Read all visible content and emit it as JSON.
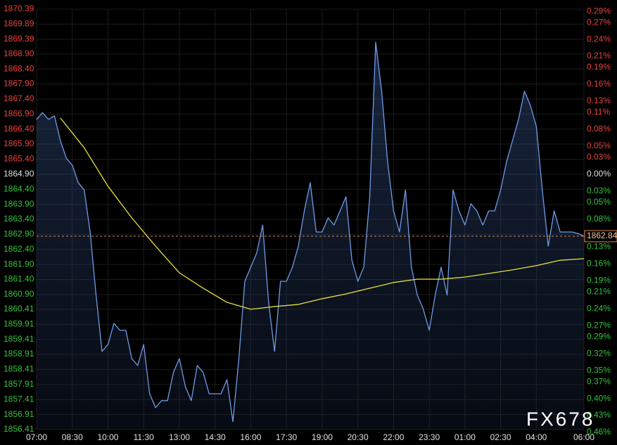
{
  "chart_data": {
    "type": "line",
    "watermark": "FX678",
    "last_price": 1862.84,
    "up_color": "#e8423c",
    "down_color": "#34c43a",
    "flat_color": "#e0e0e0",
    "grid": true,
    "xlim": [
      "07:00",
      "06:00"
    ],
    "xticks": [
      "07:00",
      "08:30",
      "10:00",
      "11:30",
      "13:00",
      "14:30",
      "16:00",
      "17:30",
      "19:00",
      "20:30",
      "22:00",
      "23:30",
      "01:00",
      "02:30",
      "04:00",
      "06:00"
    ],
    "ylim": [
      1856.41,
      1870.39
    ],
    "yticks": [
      1870.39,
      1869.89,
      1869.39,
      {
        "value": 1868.9,
        "label": "1868.90"
      },
      {
        "value": 1868.4,
        "label": "1868.40"
      },
      {
        "value": 1867.9,
        "label": "1867.90"
      },
      {
        "value": 1867.4,
        "label": "1867.40"
      },
      {
        "value": 1866.9,
        "label": "1866.90"
      },
      {
        "value": 1866.4,
        "label": "1866.40"
      },
      {
        "value": 1865.9,
        "label": "1865.90"
      },
      {
        "value": 1865.4,
        "label": "1865.40"
      },
      {
        "value": 1864.9,
        "label": "1864.90"
      },
      {
        "value": 1864.4,
        "label": "1864.40"
      },
      {
        "value": 1863.9,
        "label": "1863.90"
      },
      {
        "value": 1863.4,
        "label": "1863.40"
      },
      {
        "value": 1862.9,
        "label": "1862.90"
      },
      {
        "value": 1862.4,
        "label": "1862.40"
      },
      {
        "value": 1861.9,
        "label": "1861.90"
      },
      {
        "value": 1861.4,
        "label": "1861.40"
      },
      {
        "value": 1860.9,
        "label": "1860.90"
      },
      1860.41,
      1859.91,
      1859.41,
      1858.91,
      1858.41,
      1857.91,
      1857.41,
      1856.91,
      1856.41
    ],
    "y2lim": [
      -0.455,
      0.294
    ],
    "y2ticks": [
      {
        "value": 0.29,
        "label": "0.29%"
      },
      {
        "value": 0.27,
        "label": "0.27%"
      },
      {
        "value": 0.24,
        "label": "0.24%"
      },
      {
        "value": 0.21,
        "label": "0.21%"
      },
      {
        "value": 0.19,
        "label": "0.19%"
      },
      {
        "value": 0.16,
        "label": "0.16%"
      },
      {
        "value": 0.13,
        "label": "0.13%"
      },
      {
        "value": 0.11,
        "label": "0.11%"
      },
      {
        "value": 0.08,
        "label": "0.08%"
      },
      {
        "value": 0.05,
        "label": "0.05%"
      },
      {
        "value": 0.03,
        "label": "0.03%"
      },
      {
        "value": 0,
        "label": "0.00%"
      },
      {
        "value": -0.03,
        "label": "0.03%"
      },
      {
        "value": -0.05,
        "label": "0.05%"
      },
      {
        "value": -0.08,
        "label": "0.08%"
      },
      {
        "value": -0.11,
        "label": "0.11%"
      },
      {
        "value": -0.13,
        "label": "0.13%"
      },
      {
        "value": -0.16,
        "label": "0.16%"
      },
      {
        "value": -0.19,
        "label": "0.19%"
      },
      {
        "value": -0.21,
        "label": "0.21%"
      },
      {
        "value": -0.24,
        "label": "0.24%"
      },
      {
        "value": -0.27,
        "label": "0.27%"
      },
      {
        "value": -0.29,
        "label": "0.29%"
      },
      {
        "value": -0.32,
        "label": "0.32%"
      },
      {
        "value": -0.35,
        "label": "0.35%"
      },
      {
        "value": -0.37,
        "label": "0.37%"
      },
      {
        "value": -0.4,
        "label": "0.40%"
      },
      {
        "value": -0.43,
        "label": "0.43%"
      },
      {
        "value": -0.46,
        "label": "0.46%"
      }
    ],
    "series": [
      {
        "color": "#6f9be8",
        "fill": true,
        "x": [
          "07:00",
          "07:15",
          "07:30",
          "07:45",
          "08:00",
          "08:15",
          "08:30",
          "08:45",
          "09:00",
          "09:15",
          "09:30",
          "09:45",
          "10:00",
          "10:15",
          "10:30",
          "10:45",
          "11:00",
          "11:15",
          "11:30",
          "11:45",
          "12:00",
          "12:15",
          "12:30",
          "12:45",
          "13:00",
          "13:15",
          "13:30",
          "13:45",
          "14:00",
          "14:15",
          "14:30",
          "14:45",
          "15:00",
          "15:15",
          "15:30",
          "15:45",
          "16:00",
          "16:15",
          "16:30",
          "16:45",
          "17:00",
          "17:15",
          "17:30",
          "17:45",
          "18:00",
          "18:15",
          "18:30",
          "18:45",
          "19:00",
          "19:15",
          "19:30",
          "19:45",
          "20:00",
          "20:15",
          "20:30",
          "20:45",
          "21:00",
          "21:15",
          "21:30",
          "21:45",
          "22:00",
          "22:15",
          "22:30",
          "22:45",
          "23:00",
          "23:15",
          "23:30",
          "23:45",
          "00:00",
          "00:15",
          "00:30",
          "00:45",
          "01:00",
          "01:15",
          "01:30",
          "01:45",
          "02:00",
          "02:15",
          "02:30",
          "02:45",
          "03:00",
          "03:15",
          "03:30",
          "03:45",
          "04:00",
          "04:15",
          "04:30",
          "04:45",
          "05:00",
          "05:15",
          "05:30",
          "05:45",
          "06:00"
        ],
        "values": [
          1866.72,
          1866.95,
          1866.72,
          1866.84,
          1866.02,
          1865.43,
          1865.2,
          1864.62,
          1864.38,
          1862.98,
          1860.88,
          1859.01,
          1859.24,
          1859.94,
          1859.71,
          1859.71,
          1858.77,
          1858.54,
          1859.24,
          1857.6,
          1857.14,
          1857.37,
          1857.37,
          1858.31,
          1858.77,
          1857.84,
          1857.37,
          1858.54,
          1858.31,
          1857.6,
          1857.6,
          1857.6,
          1858.07,
          1856.67,
          1858.77,
          1861.34,
          1861.81,
          1862.28,
          1863.21,
          1860.64,
          1859.01,
          1861.34,
          1861.34,
          1861.81,
          1862.51,
          1863.68,
          1864.62,
          1862.98,
          1862.98,
          1863.45,
          1863.21,
          1863.68,
          1864.15,
          1862.04,
          1861.34,
          1861.81,
          1864.15,
          1869.29,
          1867.66,
          1865.32,
          1863.68,
          1862.98,
          1864.38,
          1861.81,
          1860.88,
          1860.41,
          1859.71,
          1860.88,
          1861.81,
          1860.88,
          1864.38,
          1863.68,
          1863.21,
          1863.92,
          1863.68,
          1863.21,
          1863.68,
          1863.68,
          1864.38,
          1865.32,
          1866.02,
          1866.72,
          1867.66,
          1867.19,
          1866.49,
          1864.38,
          1862.51,
          1863.68,
          1862.98,
          1862.98,
          1862.98,
          1862.93,
          1862.84
        ]
      },
      {
        "color": "#e6e23a",
        "fill": false,
        "x": [
          "08:00",
          "09:00",
          "10:00",
          "11:00",
          "12:00",
          "13:00",
          "14:00",
          "15:00",
          "16:00",
          "17:00",
          "18:00",
          "19:00",
          "20:00",
          "21:00",
          "22:00",
          "23:00",
          "00:00",
          "01:00",
          "02:00",
          "03:00",
          "04:00",
          "05:00",
          "06:00"
        ],
        "values": [
          1866.77,
          1865.78,
          1864.5,
          1863.45,
          1862.51,
          1861.62,
          1861.11,
          1860.64,
          1860.41,
          1860.5,
          1860.57,
          1860.76,
          1860.92,
          1861.11,
          1861.3,
          1861.41,
          1861.41,
          1861.48,
          1861.6,
          1861.72,
          1861.86,
          1862.04,
          1862.09
        ]
      }
    ]
  }
}
